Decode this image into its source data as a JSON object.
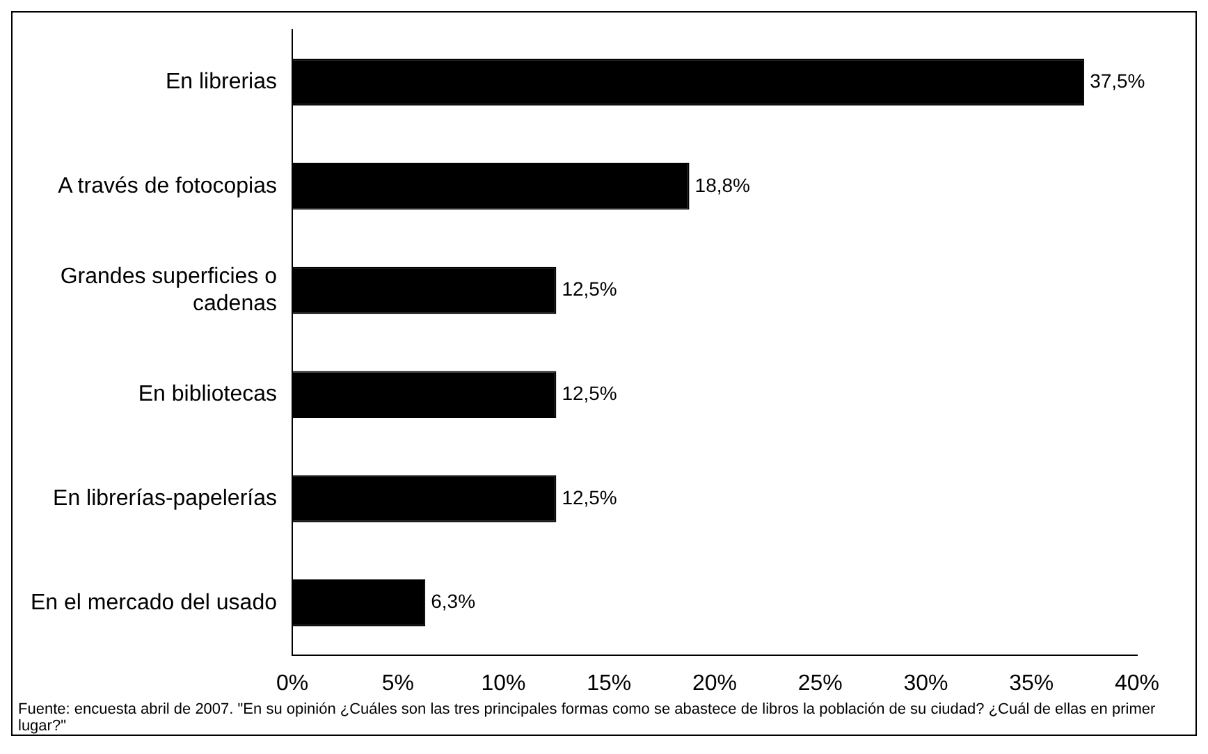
{
  "chart_data": {
    "type": "bar",
    "orientation": "horizontal",
    "categories": [
      "En librerias",
      "A través de fotocopias",
      "Grandes superficies o cadenas",
      "En bibliotecas",
      "En librerías-papelerías",
      "En el mercado del usado"
    ],
    "values": [
      37.5,
      18.8,
      12.5,
      12.5,
      12.5,
      6.3
    ],
    "value_labels": [
      "37,5%",
      "18,8%",
      "12,5%",
      "12,5%",
      "12,5%",
      "6,3%"
    ],
    "color": "#000000",
    "xlim": [
      0,
      40
    ],
    "xticks": [
      {
        "value": 0,
        "label": "0%"
      },
      {
        "value": 5,
        "label": "5%"
      },
      {
        "value": 10,
        "label": "10%"
      },
      {
        "value": 15,
        "label": "15%"
      },
      {
        "value": 20,
        "label": "20%"
      },
      {
        "value": 25,
        "label": "25%"
      },
      {
        "value": 30,
        "label": "30%"
      },
      {
        "value": 35,
        "label": "35%"
      },
      {
        "value": 40,
        "label": "40%"
      }
    ],
    "grid": false,
    "legend": false,
    "annotations": [
      "Fuente: encuesta abril de 2007. \"En su opinión ¿Cuáles son las tres principales formas como se abastece de libros la población de su ciudad? ¿Cuál de ellas en primer lugar?\""
    ]
  }
}
